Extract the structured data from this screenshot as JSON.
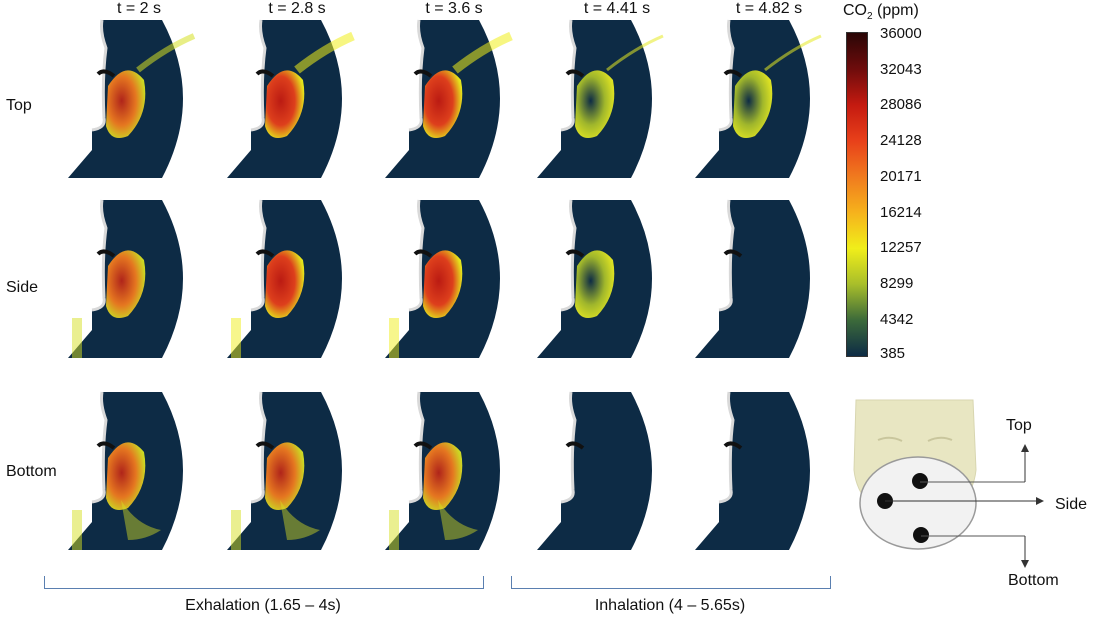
{
  "time_labels": [
    "t = 2 s",
    "t = 2.8 s",
    "t = 3.6 s",
    "t = 4.41 s",
    "t = 4.82 s"
  ],
  "row_labels": [
    "Top",
    "Side",
    "Bottom"
  ],
  "colorbar": {
    "title_main": "CO",
    "title_sub": "2",
    "title_unit": " (ppm)",
    "ticks": [
      "36000",
      "32043",
      "28086",
      "24128",
      "20171",
      "16214",
      "12257",
      "8299",
      "4342",
      "385"
    ],
    "colors": [
      "#2a0606",
      "#6e0c0c",
      "#c41a10",
      "#e8401a",
      "#f07a1e",
      "#f6b21c",
      "#f0ee1a",
      "#a8be2a",
      "#3c6a3a",
      "#0d2b45"
    ]
  },
  "mask_labels": {
    "top": "Top",
    "side": "Side",
    "bottom": "Bottom"
  },
  "phases": {
    "exhalation": "Exhalation (1.65 – 4s)",
    "inhalation": "Inhalation (4 – 5.65s)"
  },
  "colors": {
    "domain": "#0d2b45",
    "bracket": "#5a7fb0"
  }
}
